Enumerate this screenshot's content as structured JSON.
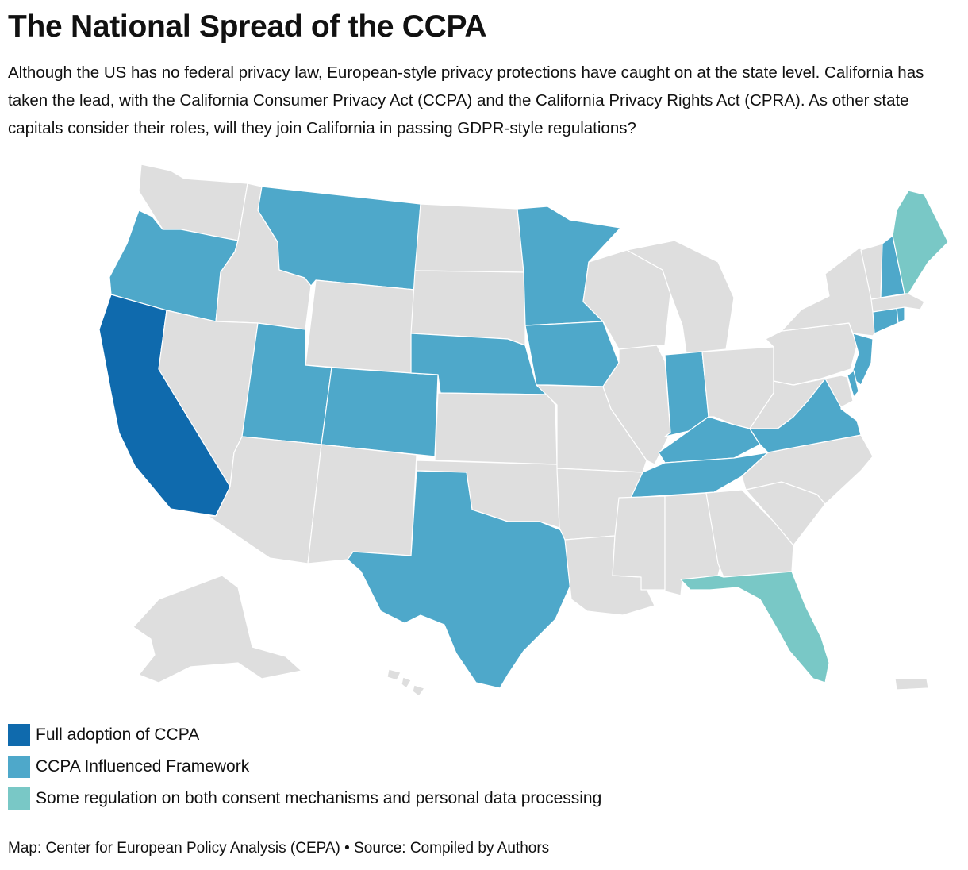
{
  "title": "The National Spread of the CCPA",
  "subtitle": "Although the US has no federal privacy law, European-style privacy protections have caught on at the state level. California has taken the lead, with the California Consumer Privacy Act (CCPA) and the California Privacy Rights Act (CPRA). As other state capitals consider their roles, will they join California in passing GDPR-style regulations?",
  "colors": {
    "full": "#0f6aad",
    "influenced": "#4ea8ca",
    "some": "#79c8c6",
    "none": "#dedede"
  },
  "legend": [
    {
      "key": "full",
      "label": "Full adoption of CCPA"
    },
    {
      "key": "influenced",
      "label": "CCPA Influenced Framework"
    },
    {
      "key": "some",
      "label": "Some regulation on both consent mechanisms and personal data processing"
    }
  ],
  "states": {
    "WA": "none",
    "OR": "influenced",
    "CA": "full",
    "ID": "none",
    "NV": "none",
    "MT": "influenced",
    "WY": "none",
    "UT": "influenced",
    "AZ": "none",
    "CO": "influenced",
    "NM": "none",
    "ND": "none",
    "SD": "none",
    "NE": "influenced",
    "KS": "none",
    "OK": "none",
    "TX": "influenced",
    "MN": "influenced",
    "IA": "influenced",
    "MO": "none",
    "AR": "none",
    "LA": "none",
    "WI": "none",
    "IL": "none",
    "MI": "none",
    "IN": "influenced",
    "OH": "none",
    "KY": "influenced",
    "TN": "influenced",
    "MS": "none",
    "AL": "none",
    "GA": "none",
    "FL": "some",
    "SC": "none",
    "NC": "none",
    "VA": "influenced",
    "WV": "none",
    "PA": "none",
    "NY": "none",
    "NJ": "influenced",
    "DE": "influenced",
    "MD": "none",
    "CT": "influenced",
    "RI": "influenced",
    "MA": "none",
    "VT": "none",
    "NH": "influenced",
    "ME": "some",
    "AK": "none",
    "HI": "none",
    "PR": "none"
  },
  "footer": "Map: Center for European Policy Analysis (CEPA) • Source: Compiled by Authors"
}
